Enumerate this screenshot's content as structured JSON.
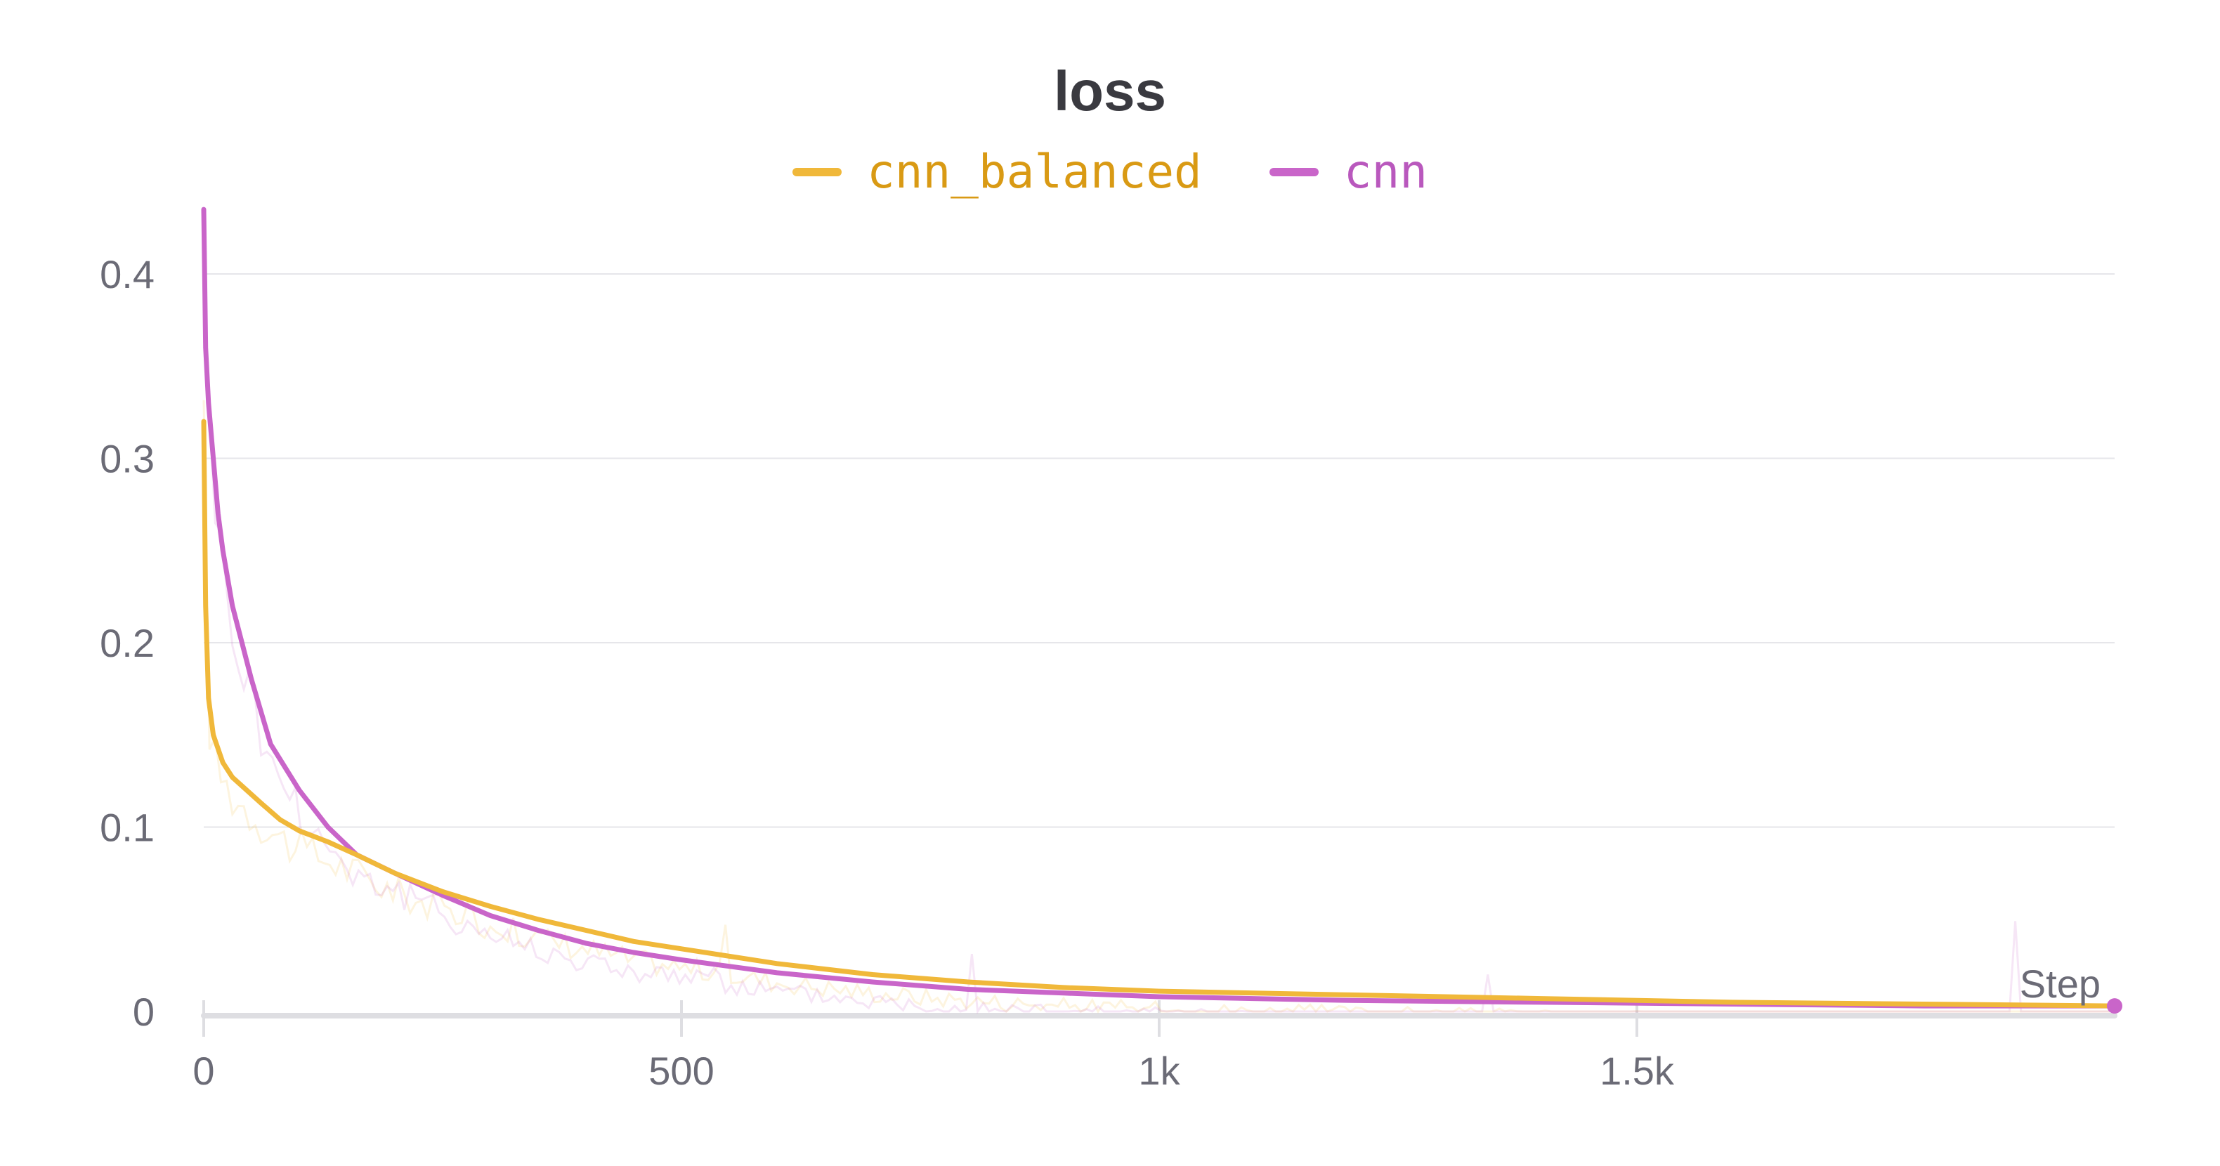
{
  "chart_data": {
    "type": "line",
    "title": "loss",
    "xlabel": "Step",
    "ylabel": "",
    "xlim": [
      0,
      2000
    ],
    "ylim": [
      0,
      0.44
    ],
    "x_ticks": [
      {
        "value": 0,
        "label": "0"
      },
      {
        "value": 500,
        "label": "500"
      },
      {
        "value": 1000,
        "label": "1k"
      },
      {
        "value": 1500,
        "label": "1.5k"
      }
    ],
    "y_ticks": [
      {
        "value": 0,
        "label": "0"
      },
      {
        "value": 0.1,
        "label": "0.1"
      },
      {
        "value": 0.2,
        "label": "0.2"
      },
      {
        "value": 0.3,
        "label": "0.3"
      },
      {
        "value": 0.4,
        "label": "0.4"
      }
    ],
    "grid": true,
    "legend_position": "top-center",
    "series": [
      {
        "name": "cnn_balanced",
        "color": "#f0b83a",
        "x": [
          0,
          2,
          5,
          10,
          20,
          30,
          45,
          60,
          80,
          100,
          130,
          160,
          200,
          250,
          300,
          350,
          400,
          450,
          500,
          600,
          700,
          800,
          900,
          1000,
          1200,
          1400,
          1600,
          1800,
          2000
        ],
        "y": [
          0.32,
          0.22,
          0.17,
          0.15,
          0.135,
          0.127,
          0.12,
          0.113,
          0.104,
          0.098,
          0.092,
          0.085,
          0.075,
          0.065,
          0.057,
          0.05,
          0.044,
          0.038,
          0.034,
          0.026,
          0.02,
          0.016,
          0.013,
          0.011,
          0.009,
          0.007,
          0.005,
          0.004,
          0.003
        ]
      },
      {
        "name": "cnn",
        "color": "#c965c9",
        "x": [
          0,
          2,
          5,
          10,
          15,
          20,
          30,
          40,
          50,
          70,
          100,
          130,
          160,
          200,
          250,
          300,
          350,
          400,
          450,
          500,
          600,
          700,
          800,
          900,
          1000,
          1200,
          1400,
          1600,
          1800,
          2000
        ],
        "y": [
          0.435,
          0.36,
          0.33,
          0.3,
          0.27,
          0.25,
          0.22,
          0.2,
          0.18,
          0.145,
          0.12,
          0.1,
          0.085,
          0.075,
          0.063,
          0.052,
          0.044,
          0.037,
          0.032,
          0.028,
          0.021,
          0.016,
          0.012,
          0.01,
          0.008,
          0.006,
          0.005,
          0.004,
          0.003,
          0.003
        ]
      }
    ]
  }
}
